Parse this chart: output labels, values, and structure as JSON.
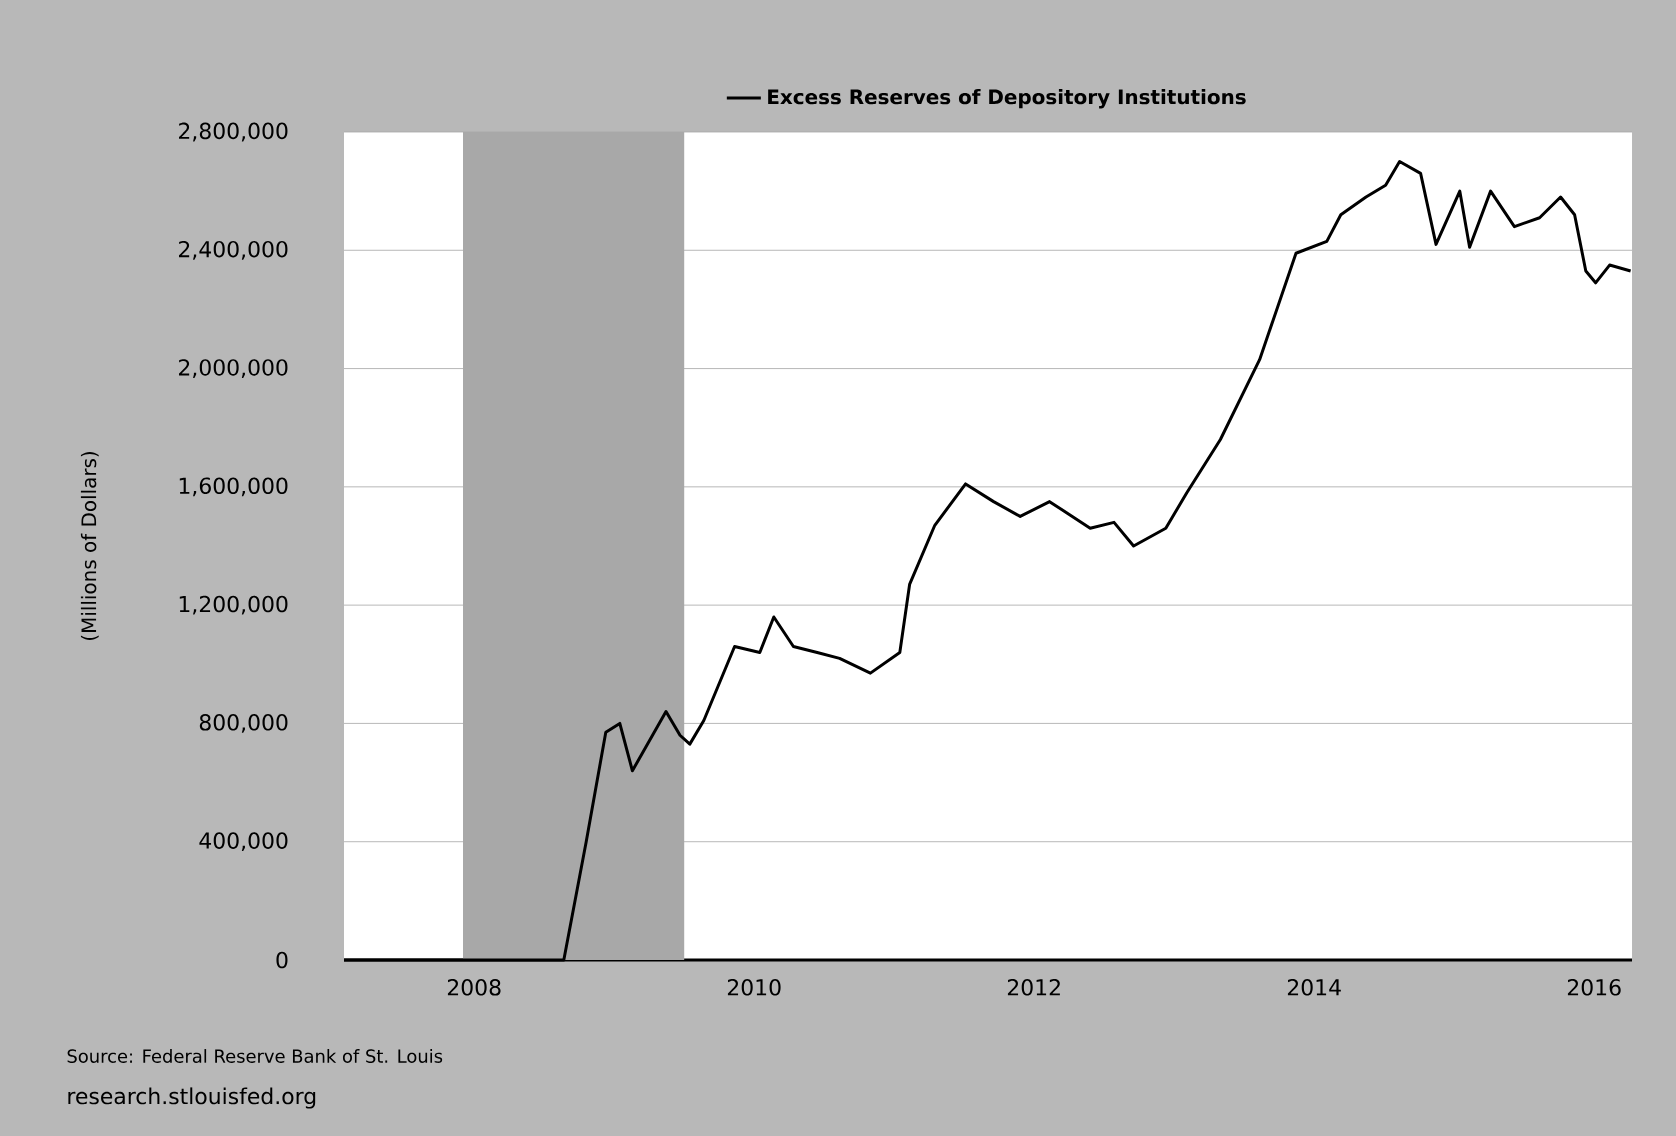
{
  "chart_data": {
    "type": "line",
    "ylabel": "(Millions of Dollars)",
    "legend": "top",
    "grid": "y",
    "xlim": [
      2007.07,
      2016.27
    ],
    "xticks": [
      2008,
      2010,
      2012,
      2014,
      2016
    ],
    "ylim": [
      0,
      2800000
    ],
    "yticks": [
      {
        "value": 0,
        "label": "0"
      },
      {
        "value": 400000,
        "label": "400,000"
      },
      {
        "value": 800000,
        "label": "800,000"
      },
      {
        "value": 1200000,
        "label": "1,200,000"
      },
      {
        "value": 1600000,
        "label": "1,600,000"
      },
      {
        "value": 2000000,
        "label": "2,000,000"
      },
      {
        "value": 2400000,
        "label": "2,400,000"
      },
      {
        "value": 2800000,
        "label": "2,800,000"
      }
    ],
    "bands": [
      {
        "axis": "x",
        "from": 2007.92,
        "to": 2009.5,
        "color": "#a8a8a8"
      }
    ],
    "series": [
      {
        "name": "Excess Reserves of Depository Institutions",
        "color": "#000000",
        "x": [
          2007.07,
          2008.0,
          2008.5,
          2008.64,
          2008.8,
          2008.94,
          2009.04,
          2009.13,
          2009.37,
          2009.47,
          2009.54,
          2009.64,
          2009.86,
          2010.04,
          2010.14,
          2010.28,
          2010.45,
          2010.61,
          2010.83,
          2011.04,
          2011.11,
          2011.29,
          2011.51,
          2011.71,
          2011.9,
          2012.11,
          2012.4,
          2012.57,
          2012.71,
          2012.94,
          2013.09,
          2013.33,
          2013.61,
          2013.87,
          2014.09,
          2014.19,
          2014.37,
          2014.51,
          2014.61,
          2014.76,
          2014.87,
          2015.04,
          2015.11,
          2015.26,
          2015.43,
          2015.61,
          2015.76,
          2015.86,
          2015.94,
          2016.01,
          2016.11,
          2016.26
        ],
        "values": [
          0,
          0,
          0,
          0,
          400000,
          770000,
          800000,
          640000,
          840000,
          760000,
          730000,
          810000,
          1060000,
          1040000,
          1160000,
          1060000,
          1040000,
          1020000,
          970000,
          1040000,
          1270000,
          1470000,
          1610000,
          1550000,
          1500000,
          1550000,
          1460000,
          1480000,
          1400000,
          1460000,
          1580000,
          1760000,
          2030000,
          2390000,
          2430000,
          2520000,
          2580000,
          2620000,
          2700000,
          2660000,
          2420000,
          2600000,
          2410000,
          2600000,
          2480000,
          2510000,
          2580000,
          2520000,
          2330000,
          2290000,
          2350000,
          2330000
        ]
      }
    ],
    "annotations": [
      "Source: Federal Reserve Bank of St. Louis",
      "research.stlouisfed.org"
    ]
  }
}
